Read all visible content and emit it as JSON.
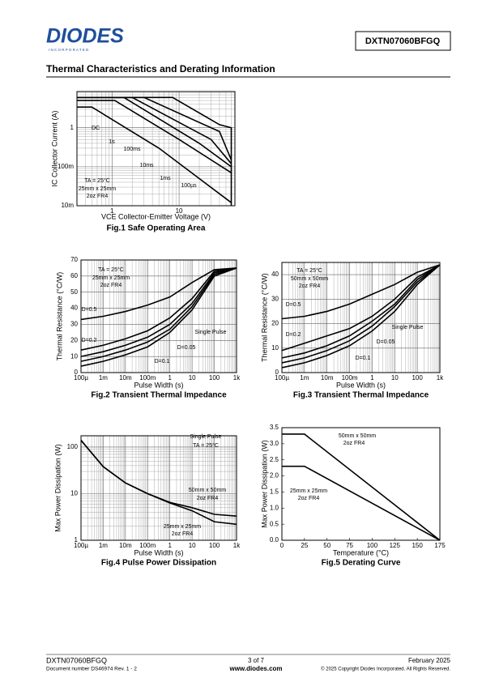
{
  "header": {
    "logo": "DIODES",
    "logo_sub": "I N C O R P O R A T E D",
    "part": "DXTN07060BFGQ"
  },
  "section_title": "Thermal Characteristics and Derating Information",
  "charts": [
    {
      "type": "line",
      "caption": "Fig.1 Safe Operating Area",
      "xlabel": "VCE Collector-Emitter Voltage (V)",
      "ylabel": "IC Collector Current (A)",
      "xscale": "log",
      "yscale": "log",
      "xlim": [
        0.3,
        68
      ],
      "ylim": [
        0.01,
        8.5
      ],
      "grid": true,
      "xticks": [
        1,
        10
      ],
      "yticks": [
        {
          "value": 0.01,
          "label": "10m"
        },
        {
          "value": 0.1,
          "label": "100m"
        },
        1
      ],
      "series": [
        {
          "name": "DC",
          "color": "#000000",
          "x": [
            0.3,
            0.5,
            5,
            60
          ],
          "values": [
            3.4,
            3.4,
            0.3,
            0.012
          ]
        },
        {
          "name": "1s",
          "color": "#000000",
          "x": [
            0.3,
            1.1,
            10,
            60
          ],
          "values": [
            5,
            5,
            0.5,
            0.07
          ]
        },
        {
          "name": "100ms",
          "color": "#000000",
          "x": [
            0.3,
            1.5,
            20,
            60
          ],
          "values": [
            6,
            6,
            0.4,
            0.1
          ]
        },
        {
          "name": "10ms",
          "color": "#000000",
          "x": [
            0.3,
            2,
            30,
            60
          ],
          "values": [
            6,
            6,
            0.5,
            0.12
          ]
        },
        {
          "name": "1ms",
          "color": "#000000",
          "x": [
            0.3,
            3,
            40,
            60
          ],
          "values": [
            6,
            6,
            0.8,
            0.15
          ]
        },
        {
          "name": "100µs",
          "color": "#000000",
          "x": [
            0.3,
            8,
            40,
            60,
            60
          ],
          "values": [
            6,
            6,
            1.2,
            1,
            0.01
          ]
        }
      ],
      "annotations": [
        "TA = 25°C",
        "25mm x 25mm",
        "2oz FR4"
      ]
    },
    {
      "type": "line",
      "caption": "Fig.2 Transient Thermal Impedance",
      "xlabel": "Pulse Width (s)",
      "ylabel": "Thermal Resistance (°C/W)",
      "xscale": "log",
      "yscale": "linear",
      "xlim": [
        0.0001,
        1000
      ],
      "ylim": [
        0,
        70
      ],
      "grid": true,
      "xticks": [
        {
          "value": 0.0001,
          "label": "100µ"
        },
        {
          "value": 0.001,
          "label": "1m"
        },
        {
          "value": 0.01,
          "label": "10m"
        },
        {
          "value": 0.1,
          "label": "100m"
        },
        1,
        10,
        100,
        {
          "value": 1000,
          "label": "1k"
        }
      ],
      "yticks": [
        0,
        10,
        20,
        30,
        40,
        50,
        60,
        70
      ],
      "x": [
        0.0001,
        0.001,
        0.01,
        0.1,
        1,
        10,
        100,
        1000
      ],
      "series": [
        {
          "name": "D=0.5",
          "color": "#000000",
          "values": [
            33,
            35,
            38,
            42,
            47,
            56,
            64,
            65
          ]
        },
        {
          "name": "D=0.2",
          "color": "#000000",
          "values": [
            14,
            17,
            21,
            26,
            34,
            46,
            63,
            65
          ]
        },
        {
          "name": "D=0.1",
          "color": "#000000",
          "values": [
            10,
            13,
            17,
            22,
            30,
            43,
            62,
            65
          ]
        },
        {
          "name": "D=0.05",
          "color": "#000000",
          "values": [
            7,
            10,
            14,
            19,
            27,
            41,
            61,
            65
          ]
        },
        {
          "name": "Single Pulse",
          "color": "#000000",
          "values": [
            4,
            7,
            11,
            16,
            25,
            39,
            60,
            65
          ]
        }
      ],
      "annotations": [
        "TA = 25°C",
        "25mm x 25mm",
        "2oz FR4"
      ]
    },
    {
      "type": "line",
      "caption": "Fig.3 Transient Thermal Impedance",
      "xlabel": "Pulse Width (s)",
      "ylabel": "Thermal Resistance (°C/W)",
      "xscale": "log",
      "yscale": "linear",
      "xlim": [
        0.0001,
        1000
      ],
      "ylim": [
        0,
        45
      ],
      "grid": true,
      "xticks": [
        {
          "value": 0.0001,
          "label": "100µ"
        },
        {
          "value": 0.001,
          "label": "1m"
        },
        {
          "value": 0.01,
          "label": "10m"
        },
        {
          "value": 0.1,
          "label": "100m"
        },
        1,
        10,
        100,
        {
          "value": 1000,
          "label": "1k"
        }
      ],
      "yticks": [
        0,
        10,
        20,
        30,
        40
      ],
      "x": [
        0.0001,
        0.001,
        0.01,
        0.1,
        1,
        10,
        100,
        1000
      ],
      "series": [
        {
          "name": "D=0.5",
          "color": "#000000",
          "values": [
            22,
            23,
            25,
            28,
            32,
            36,
            41,
            44
          ]
        },
        {
          "name": "D=0.2",
          "color": "#000000",
          "values": [
            9,
            12,
            15,
            18,
            23,
            30,
            39,
            44
          ]
        },
        {
          "name": "D=0.1",
          "color": "#000000",
          "values": [
            6,
            8,
            11,
            15,
            21,
            28,
            38,
            44
          ]
        },
        {
          "name": "D=0.05",
          "color": "#000000",
          "values": [
            4,
            6,
            9,
            13,
            19,
            27,
            37,
            44
          ]
        },
        {
          "name": "Single Pulse",
          "color": "#000000",
          "values": [
            2,
            4,
            7,
            11,
            17,
            25,
            36,
            44
          ]
        }
      ],
      "annotations": [
        "TA = 25°C",
        "50mm x 50mm",
        "2oz FR4"
      ]
    },
    {
      "type": "line",
      "caption": "Fig.4 Pulse Power Dissipation",
      "xlabel": "Pulse Width (s)",
      "ylabel": "Max Power Dissipation (W)",
      "xscale": "log",
      "yscale": "log",
      "xlim": [
        0.0001,
        1000
      ],
      "ylim": [
        1,
        175
      ],
      "grid": true,
      "xticks": [
        {
          "value": 0.0001,
          "label": "100µ"
        },
        {
          "value": 0.001,
          "label": "1m"
        },
        {
          "value": 0.01,
          "label": "10m"
        },
        {
          "value": 0.1,
          "label": "100m"
        },
        1,
        10,
        100,
        {
          "value": 1000,
          "label": "1k"
        }
      ],
      "yticks": [
        1,
        10,
        100
      ],
      "x": [
        0.0001,
        0.001,
        0.01,
        0.1,
        1,
        10,
        100,
        1000
      ],
      "series": [
        {
          "name": "50mm x 50mm",
          "color": "#000000",
          "values": [
            140,
            38,
            17,
            10,
            6.5,
            5,
            3.6,
            3.3
          ]
        },
        {
          "name": "25mm x 25mm",
          "color": "#000000",
          "values": [
            140,
            38,
            17,
            10,
            6.3,
            4.3,
            2.5,
            2.2
          ]
        }
      ],
      "annotations": [
        "Single Pulse",
        "TA = 25°C",
        "2oz FR4",
        "2oz FR4"
      ]
    },
    {
      "type": "line",
      "caption": "Fig.5 Derating Curve",
      "xlabel": "Temperature (°C)",
      "ylabel": "Max Power Dissipation (W)",
      "xscale": "linear",
      "yscale": "linear",
      "xlim": [
        0,
        175
      ],
      "ylim": [
        0,
        3.5
      ],
      "grid": false,
      "xticks": [
        0,
        25,
        50,
        75,
        100,
        125,
        150,
        175
      ],
      "yticks": [
        {
          "value": 0,
          "label": "0.0"
        },
        0.5,
        {
          "value": 1,
          "label": "1.0"
        },
        1.5,
        {
          "value": 2,
          "label": "2.0"
        },
        2.5,
        {
          "value": 3,
          "label": "3.0"
        },
        3.5
      ],
      "series": [
        {
          "name": "50mm x 50mm",
          "color": "#000000",
          "x": [
            0,
            25,
            175
          ],
          "values": [
            3.3,
            3.3,
            0
          ]
        },
        {
          "name": "25mm x 25mm",
          "color": "#000000",
          "x": [
            0,
            25,
            175
          ],
          "values": [
            2.3,
            2.3,
            0
          ]
        }
      ],
      "annotations": [
        "2oz FR4",
        "2oz FR4"
      ]
    }
  ],
  "footer": {
    "part": "DXTN07060BFGQ",
    "doc": "Document number DS46974 Rev. 1 - 2",
    "page": "3 of 7",
    "url": "www.diodes.com",
    "date": "February 2025",
    "copyright": "© 2025 Copyright Diodes Incorporated. All Rights Reserved."
  }
}
